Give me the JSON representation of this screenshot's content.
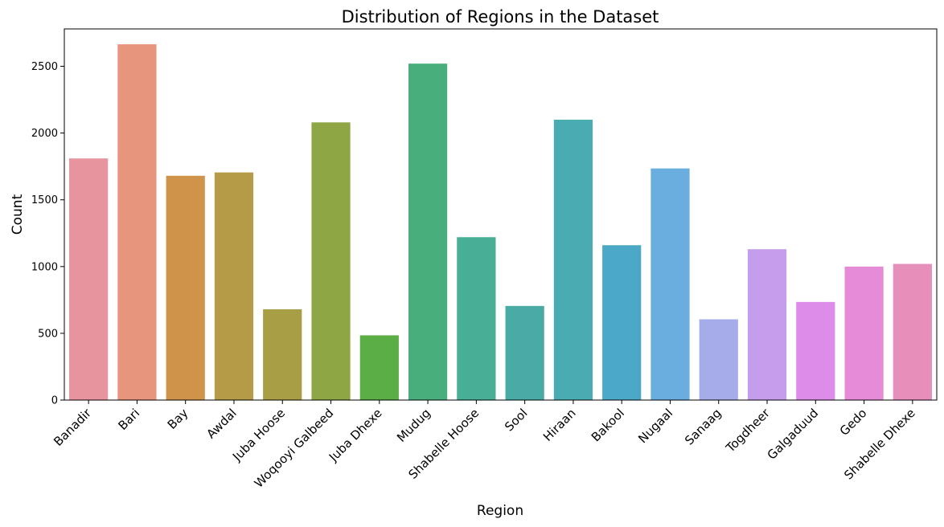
{
  "chart_data": {
    "type": "bar",
    "title": "Distribution of Regions in the Dataset",
    "xlabel": "Region",
    "ylabel": "Count",
    "categories": [
      "Banadir",
      "Bari",
      "Bay",
      "Awdal",
      "Juba Hoose",
      "Woqooyi Galbeed",
      "Juba Dhexe",
      "Mudug",
      "Shabelle Hoose",
      "Sool",
      "Hiraan",
      "Bakool",
      "Nugaal",
      "Sanaag",
      "Togdheer",
      "Galgaduud",
      "Gedo",
      "Shabelle Dhexe"
    ],
    "values": [
      1810,
      2665,
      1680,
      1705,
      680,
      2080,
      485,
      2520,
      1220,
      705,
      2100,
      1160,
      1735,
      605,
      1130,
      735,
      1000,
      1020
    ],
    "colors": [
      "#e8949f",
      "#e7957c",
      "#cf944a",
      "#b59a47",
      "#a89e46",
      "#8ea643",
      "#5aae45",
      "#48ae7c",
      "#48ae96",
      "#4aaba4",
      "#4aacb3",
      "#4ca8c7",
      "#6aaee0",
      "#a6abea",
      "#c49ded",
      "#dd8ce9",
      "#e68cd6",
      "#e68fbb"
    ],
    "ylim": [
      0,
      2780
    ],
    "yticks": [
      "0",
      "500",
      "1000",
      "1500",
      "2000",
      "2500"
    ],
    "grid": false,
    "legend": "none"
  }
}
